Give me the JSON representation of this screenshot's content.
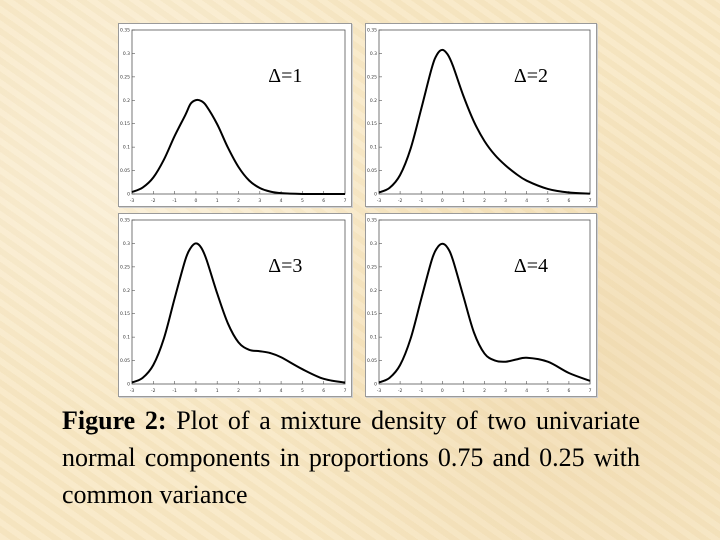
{
  "chart_data": [
    {
      "type": "line",
      "label": "Δ=1",
      "xlim": [
        -3,
        7
      ],
      "ylim": [
        0,
        0.35
      ],
      "xticks": [
        "-3",
        "-2",
        "-1",
        "0",
        "1",
        "2",
        "3",
        "4",
        "5",
        "6",
        "7"
      ],
      "yticks": [
        "0",
        "0.05",
        "0.1",
        "0.15",
        "0.2",
        "0.25",
        "0.3",
        "0.35"
      ],
      "series": [
        {
          "x": [
            -3,
            -2.5,
            -2,
            -1.5,
            -1,
            -0.5,
            -0.25,
            0,
            0.25,
            0.5,
            1,
            1.5,
            2,
            2.5,
            3,
            3.5,
            4,
            5,
            6,
            7
          ],
          "y": [
            0.0042,
            0.0138,
            0.0352,
            0.0735,
            0.1236,
            0.1683,
            0.1924,
            0.2004,
            0.1984,
            0.1875,
            0.1489,
            0.0993,
            0.0576,
            0.0288,
            0.0128,
            0.0051,
            0.0018,
            0.0001,
            0.0,
            0.0
          ]
        }
      ]
    },
    {
      "type": "line",
      "label": "Δ=2",
      "xlim": [
        -3,
        7
      ],
      "ylim": [
        0,
        0.35
      ],
      "xticks": [
        "-3",
        "-2",
        "-1",
        "0",
        "1",
        "2",
        "3",
        "4",
        "5",
        "6",
        "7"
      ],
      "yticks": [
        "0",
        "0.05",
        "0.1",
        "0.15",
        "0.2",
        "0.25",
        "0.3",
        "0.35"
      ],
      "series": [
        {
          "x": [
            -3,
            -2.5,
            -2,
            -1.5,
            -1,
            -0.5,
            -0.25,
            0,
            0.25,
            0.5,
            1,
            1.5,
            2,
            2.5,
            3,
            3.5,
            4,
            5,
            6,
            7
          ],
          "y": [
            0.0033,
            0.0131,
            0.0406,
            0.097,
            0.1815,
            0.2686,
            0.2978,
            0.3077,
            0.298,
            0.2739,
            0.2094,
            0.1544,
            0.1129,
            0.0829,
            0.0608,
            0.0429,
            0.0284,
            0.0108,
            0.0031,
            0.0008
          ]
        }
      ]
    },
    {
      "type": "line",
      "label": "Δ=3",
      "xlim": [
        -3,
        7
      ],
      "ylim": [
        0,
        0.35
      ],
      "xticks": [
        "-3",
        "-2",
        "-1",
        "0",
        "1",
        "2",
        "3",
        "4",
        "5",
        "6",
        "7"
      ],
      "yticks": [
        "0",
        "0.05",
        "0.1",
        "0.15",
        "0.2",
        "0.25",
        "0.3",
        "0.35"
      ],
      "series": [
        {
          "x": [
            -3,
            -2.5,
            -2,
            -1.5,
            -1,
            -0.5,
            -0.25,
            0,
            0.25,
            0.5,
            1,
            1.5,
            2,
            2.5,
            3,
            3.5,
            4,
            5,
            6,
            7
          ],
          "y": [
            0.0033,
            0.0131,
            0.0405,
            0.0975,
            0.1824,
            0.2646,
            0.29,
            0.3001,
            0.291,
            0.265,
            0.1932,
            0.1295,
            0.0889,
            0.073,
            0.07,
            0.0659,
            0.057,
            0.0316,
            0.011,
            0.003
          ]
        }
      ]
    },
    {
      "type": "line",
      "label": "Δ=4",
      "xlim": [
        -3,
        7
      ],
      "ylim": [
        0,
        0.35
      ],
      "xticks": [
        "-3",
        "-2",
        "-1",
        "0",
        "1",
        "2",
        "3",
        "4",
        "5",
        "6",
        "7"
      ],
      "yticks": [
        "0",
        "0.05",
        "0.1",
        "0.15",
        "0.2",
        "0.25",
        "0.3",
        "0.35"
      ],
      "series": [
        {
          "x": [
            -3,
            -2.5,
            -2,
            -1.5,
            -1,
            -0.5,
            -0.25,
            0,
            0.25,
            0.5,
            1,
            1.5,
            2,
            2.5,
            3,
            3.5,
            4,
            5,
            6,
            7
          ],
          "y": [
            0.0033,
            0.0131,
            0.0405,
            0.0971,
            0.1815,
            0.2646,
            0.29,
            0.2992,
            0.2908,
            0.265,
            0.187,
            0.1099,
            0.065,
            0.05,
            0.0476,
            0.0522,
            0.056,
            0.0476,
            0.0235,
            0.0068
          ]
        }
      ]
    }
  ],
  "caption": {
    "lead": "Figure 2:",
    "text": " Plot of a mixture density of two univariate normal components in proportions 0.75 and 0.25 with common variance"
  }
}
